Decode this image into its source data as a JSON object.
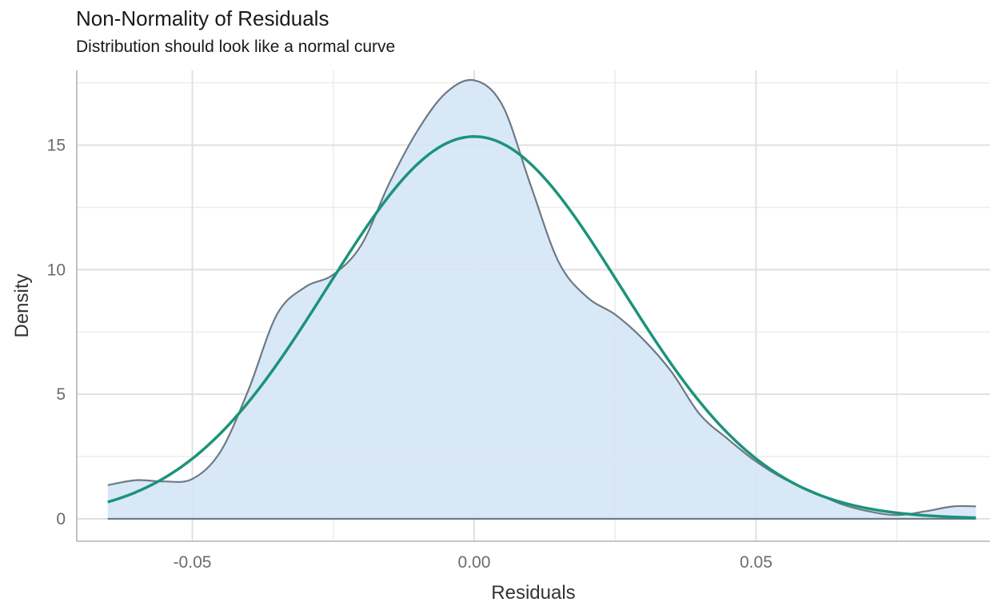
{
  "chart_data": {
    "type": "area",
    "title": "Non-Normality of Residuals",
    "subtitle": "Distribution should look like a normal curve",
    "xlabel": "Residuals",
    "ylabel": "Density",
    "xlim": [
      -0.0705,
      0.0915
    ],
    "ylim": [
      -0.9,
      18.0
    ],
    "x_ticks": [
      -0.05,
      0.0,
      0.05
    ],
    "x_tick_labels": [
      "-0.05",
      "0.00",
      "0.05"
    ],
    "y_ticks": [
      0,
      5,
      10,
      15
    ],
    "y_tick_labels": [
      "0",
      "5",
      "10",
      "15"
    ],
    "grid": true,
    "series": [
      {
        "kind": "density",
        "x": [
          -0.065,
          -0.06,
          -0.055,
          -0.05,
          -0.045,
          -0.04,
          -0.035,
          -0.03,
          -0.025,
          -0.02,
          -0.015,
          -0.01,
          -0.005,
          0.0,
          0.005,
          0.01,
          0.015,
          0.02,
          0.025,
          0.03,
          0.035,
          0.04,
          0.045,
          0.05,
          0.055,
          0.06,
          0.065,
          0.07,
          0.075,
          0.08,
          0.085,
          0.089
        ],
        "y": [
          1.35,
          1.55,
          1.5,
          1.6,
          2.7,
          5.2,
          8.2,
          9.3,
          9.8,
          11.0,
          13.5,
          15.6,
          17.1,
          17.6,
          16.6,
          13.4,
          10.3,
          8.9,
          8.2,
          7.2,
          5.9,
          4.2,
          3.2,
          2.3,
          1.6,
          1.1,
          0.6,
          0.3,
          0.15,
          0.3,
          0.5,
          0.5
        ],
        "stroke_color": "#6c7a86",
        "fill_color": "#d5e6f5"
      },
      {
        "kind": "normal-curve",
        "mean": 0.0,
        "sd": 0.026,
        "x_range": [
          -0.065,
          0.089
        ],
        "color": "#1b937a"
      }
    ],
    "baseline_y": 0
  }
}
